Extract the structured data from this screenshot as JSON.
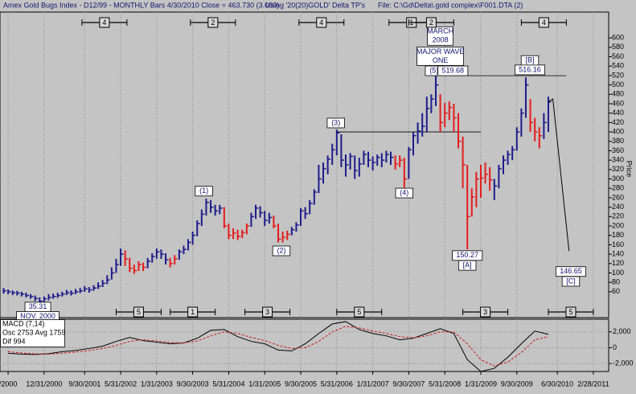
{
  "header": {
    "title": "Amex Gold Bugs Index - D12/99 - MONTHLY Bars 4/30/2010 Close = 463.730 (3.080)",
    "using": "Using '20(20)GOLD' Delta TP's",
    "file": "File: C:\\Gd\\Delta\\.gold complex\\F001.DTA (2)"
  },
  "chart_data": [
    {
      "type": "ohlc",
      "y_axis_label": "Price",
      "xlim": [
        1.2,
        136.4
      ],
      "ylim": [
        5,
        655
      ],
      "xticks": [
        {
          "value": 3,
          "label": "/2000"
        },
        {
          "value": 11,
          "label": "12/31/2000"
        },
        {
          "value": 20,
          "label": "9/30/2001"
        },
        {
          "value": 28,
          "label": "5/31/2002"
        },
        {
          "value": 36,
          "label": "1/31/2003"
        },
        {
          "value": 44,
          "label": "9/30/2003"
        },
        {
          "value": 52,
          "label": "5/31/2004"
        },
        {
          "value": 60,
          "label": "1/31/2005"
        },
        {
          "value": 68,
          "label": "9/30/2005"
        },
        {
          "value": 76,
          "label": "5/31/2006"
        },
        {
          "value": 84,
          "label": "1/31/2007"
        },
        {
          "value": 92,
          "label": "9/30/2007"
        },
        {
          "value": 100,
          "label": "5/31/2008"
        },
        {
          "value": 108,
          "label": "1/31/2009"
        },
        {
          "value": 116,
          "label": "9/30/2009"
        },
        {
          "value": 125,
          "label": "6/30/2010"
        },
        {
          "value": 133,
          "label": "2/28/2011"
        }
      ],
      "yticks": [
        60,
        80,
        100,
        120,
        140,
        160,
        180,
        200,
        220,
        240,
        260,
        280,
        300,
        320,
        340,
        360,
        380,
        400,
        420,
        440,
        460,
        480,
        500,
        520,
        540,
        560,
        580,
        600
      ],
      "grid": true,
      "x": [
        2,
        3,
        4,
        5,
        6,
        7,
        8,
        9,
        10,
        11,
        12,
        13,
        14,
        15,
        16,
        17,
        18,
        19,
        20,
        21,
        22,
        23,
        24,
        25,
        26,
        27,
        28,
        29,
        30,
        31,
        32,
        33,
        34,
        35,
        36,
        37,
        38,
        39,
        40,
        41,
        42,
        43,
        44,
        45,
        46,
        47,
        48,
        49,
        50,
        51,
        52,
        53,
        54,
        55,
        56,
        57,
        58,
        59,
        60,
        61,
        62,
        63,
        64,
        65,
        66,
        67,
        68,
        69,
        70,
        71,
        72,
        73,
        74,
        75,
        76,
        77,
        78,
        79,
        80,
        81,
        82,
        83,
        84,
        85,
        86,
        87,
        88,
        89,
        90,
        91,
        92,
        93,
        94,
        95,
        96,
        97,
        98,
        99,
        100,
        101,
        102,
        103,
        104,
        105,
        106,
        107,
        108,
        109,
        110,
        111,
        112,
        113,
        114,
        115,
        116,
        117,
        118,
        119,
        120,
        121,
        122,
        123
      ],
      "high": [
        68,
        65,
        63,
        62,
        60,
        58,
        55,
        52,
        48,
        50,
        55,
        56,
        58,
        60,
        64,
        63,
        66,
        68,
        72,
        70,
        74,
        80,
        85,
        95,
        112,
        130,
        152,
        148,
        132,
        118,
        125,
        122,
        132,
        142,
        152,
        150,
        142,
        132,
        138,
        150,
        158,
        172,
        188,
        212,
        235,
        258,
        255,
        245,
        245,
        240,
        205,
        195,
        192,
        192,
        205,
        228,
        245,
        242,
        232,
        228,
        222,
        205,
        188,
        190,
        198,
        208,
        238,
        240,
        255,
        278,
        330,
        335,
        350,
        375,
        405,
        395,
        352,
        355,
        350,
        345,
        360,
        358,
        348,
        352,
        355,
        360,
        358,
        350,
        350,
        345,
        368,
        400,
        420,
        440,
        475,
        480,
        519.68,
        480,
        462,
        465,
        460,
        440,
        390,
        330,
        280,
        315,
        330,
        335,
        325,
        300,
        330,
        350,
        360,
        370,
        410,
        450,
        516.16,
        470,
        430,
        410,
        440,
        475
      ],
      "low": [
        56,
        55,
        53,
        52,
        50,
        48,
        45,
        40,
        35.31,
        38,
        42,
        45,
        47,
        50,
        53,
        52,
        55,
        57,
        60,
        58,
        62,
        66,
        70,
        76,
        86,
        100,
        115,
        115,
        102,
        98,
        104,
        104,
        110,
        122,
        130,
        130,
        118,
        112,
        118,
        128,
        140,
        148,
        160,
        178,
        200,
        222,
        228,
        222,
        225,
        195,
        172,
        172,
        170,
        174,
        182,
        198,
        215,
        218,
        200,
        205,
        195,
        165,
        165,
        170,
        180,
        188,
        200,
        215,
        225,
        245,
        270,
        290,
        310,
        330,
        350,
        325,
        305,
        320,
        300,
        305,
        330,
        325,
        318,
        328,
        325,
        335,
        330,
        320,
        325,
        280,
        300,
        350,
        375,
        390,
        400,
        440,
        455,
        400,
        410,
        425,
        400,
        365,
        280,
        150.27,
        220,
        240,
        260,
        290,
        275,
        255,
        280,
        310,
        330,
        340,
        360,
        390,
        430,
        400,
        380,
        365,
        385,
        400
      ],
      "close": [
        62,
        60,
        58,
        57,
        55,
        52,
        50,
        46,
        40,
        45,
        48,
        50,
        52,
        55,
        58,
        57,
        60,
        62,
        66,
        64,
        68,
        72,
        78,
        85,
        100,
        118,
        140,
        130,
        110,
        105,
        118,
        112,
        125,
        135,
        145,
        140,
        128,
        120,
        130,
        145,
        150,
        165,
        180,
        205,
        225,
        250,
        240,
        232,
        238,
        200,
        180,
        185,
        178,
        186,
        200,
        220,
        238,
        228,
        212,
        218,
        200,
        172,
        176,
        182,
        192,
        202,
        232,
        226,
        248,
        272,
        300,
        322,
        342,
        362,
        398,
        340,
        330,
        348,
        318,
        332,
        352,
        340,
        335,
        346,
        340,
        352,
        346,
        332,
        340,
        300,
        362,
        392,
        402,
        412,
        450,
        470,
        500,
        420,
        440,
        452,
        430,
        380,
        330,
        220,
        262,
        300,
        302,
        310,
        298,
        285,
        322,
        340,
        352,
        362,
        400,
        440,
        500,
        420,
        400,
        392,
        420,
        463.73
      ],
      "bar_colors": [
        "#1c1c8c",
        "#1c1c8c",
        "#1c1c8c",
        "#1c1c8c",
        "#1c1c8c",
        "#1c1c8c",
        "#1c1c8c",
        "#1c1c8c",
        "#1c1c8c",
        "#1c1c8c",
        "#1c1c8c",
        "#1c1c8c",
        "#1c1c8c",
        "#1c1c8c",
        "#1c1c8c",
        "#1c1c8c",
        "#1c1c8c",
        "#1c1c8c",
        "#1c1c8c",
        "#1c1c8c",
        "#1c1c8c",
        "#1c1c8c",
        "#1c1c8c",
        "#1c1c8c",
        "#1c1c8c",
        "#1c1c8c",
        "#1c1c8c",
        "#e41c1c",
        "#e41c1c",
        "#e41c1c",
        "#e41c1c",
        "#e41c1c",
        "#1c1c8c",
        "#1c1c8c",
        "#1c1c8c",
        "#1c1c8c",
        "#1c1c8c",
        "#e41c1c",
        "#e41c1c",
        "#1c1c8c",
        "#1c1c8c",
        "#1c1c8c",
        "#1c1c8c",
        "#1c1c8c",
        "#1c1c8c",
        "#1c1c8c",
        "#1c1c8c",
        "#1c1c8c",
        "#1c1c8c",
        "#e41c1c",
        "#e41c1c",
        "#e41c1c",
        "#e41c1c",
        "#e41c1c",
        "#e41c1c",
        "#1c1c8c",
        "#1c1c8c",
        "#1c1c8c",
        "#1c1c8c",
        "#1c1c8c",
        "#e41c1c",
        "#e41c1c",
        "#e41c1c",
        "#e41c1c",
        "#1c1c8c",
        "#1c1c8c",
        "#1c1c8c",
        "#1c1c8c",
        "#1c1c8c",
        "#1c1c8c",
        "#1c1c8c",
        "#1c1c8c",
        "#1c1c8c",
        "#1c1c8c",
        "#1c1c8c",
        "#1c1c8c",
        "#1c1c8c",
        "#1c1c8c",
        "#1c1c8c",
        "#1c1c8c",
        "#1c1c8c",
        "#1c1c8c",
        "#1c1c8c",
        "#1c1c8c",
        "#1c1c8c",
        "#1c1c8c",
        "#1c1c8c",
        "#e41c1c",
        "#e41c1c",
        "#e41c1c",
        "#1c1c8c",
        "#1c1c8c",
        "#1c1c8c",
        "#1c1c8c",
        "#1c1c8c",
        "#1c1c8c",
        "#1c1c8c",
        "#e41c1c",
        "#e41c1c",
        "#e41c1c",
        "#e41c1c",
        "#e41c1c",
        "#e41c1c",
        "#e41c1c",
        "#e41c1c",
        "#e41c1c",
        "#e41c1c",
        "#e41c1c",
        "#e41c1c",
        "#1c1c8c",
        "#1c1c8c",
        "#1c1c8c",
        "#1c1c8c",
        "#1c1c8c",
        "#1c1c8c",
        "#1c1c8c",
        "#1c1c8c",
        "#e41c1c",
        "#e41c1c",
        "#e41c1c",
        "#1c1c8c",
        "#1c1c8c"
      ],
      "hlines": [
        {
          "value": 400,
          "x": [
            76,
            108
          ]
        },
        {
          "value": 519.68,
          "x": [
            97.6,
            127
          ]
        }
      ],
      "projection": {
        "x": [
          123,
          124,
          127.6
        ],
        "values": [
          463.73,
          470,
          146.65
        ]
      },
      "annotations": [
        {
          "lines": [
            "35.31"
          ],
          "x": 9.6,
          "y": 27.5
        },
        {
          "lines": [
            "NOV. 2000"
          ],
          "x": 9.6,
          "y": 7.5
        },
        {
          "lines": [
            "(1)"
          ],
          "x": 46.5,
          "y": 274
        },
        {
          "lines": [
            "(2)"
          ],
          "x": 63.7,
          "y": 147
        },
        {
          "lines": [
            "(3)"
          ],
          "x": 75.8,
          "y": 419
        },
        {
          "lines": [
            "(4)"
          ],
          "x": 91,
          "y": 270
        },
        {
          "lines": [
            "(5)"
          ],
          "x": 97.6,
          "y": 530
        },
        {
          "lines": [
            "519.68"
          ],
          "x": 101.8,
          "y": 530
        },
        {
          "lines": [
            "MAJOR WAVE",
            "ONE"
          ],
          "x": 99,
          "y": 561
        },
        {
          "lines": [
            "MARCH",
            "2008"
          ],
          "x": 99,
          "y": 604
        },
        {
          "lines": [
            "[B]"
          ],
          "x": 118.9,
          "y": 552
        },
        {
          "lines": [
            "516.16"
          ],
          "x": 118.9,
          "y": 532
        },
        {
          "lines": [
            "150.27"
          ],
          "x": 105,
          "y": 137
        },
        {
          "lines": [
            "[A]"
          ],
          "x": 105,
          "y": 116
        },
        {
          "lines": [
            "146.65"
          ],
          "x": 128,
          "y": 103
        },
        {
          "lines": [
            "[C]"
          ],
          "x": 128,
          "y": 82
        }
      ],
      "top_markers": [
        {
          "label": "4",
          "x": 24.4
        },
        {
          "label": "2",
          "x": 48.5
        },
        {
          "label": "4",
          "x": 72.6
        },
        {
          "label": "1",
          "x": 92.6
        },
        {
          "label": "2",
          "x": 97
        },
        {
          "label": "4",
          "x": 122
        }
      ],
      "bottom_markers": [
        {
          "label": "5",
          "x": 32
        },
        {
          "label": "1",
          "x": 44
        },
        {
          "label": "3",
          "x": 60.6
        },
        {
          "label": "5",
          "x": 81
        },
        {
          "label": "3",
          "x": 109
        },
        {
          "label": "5",
          "x": 128
        }
      ]
    },
    {
      "type": "line",
      "legend": [
        "MACD (7,14)",
        "Osc 2753 Avg 1759",
        "Dif 994"
      ],
      "ylim": [
        -3000,
        3600
      ],
      "yticks": [
        {
          "value": 2000,
          "label": "2,000"
        },
        0,
        {
          "value": -2000,
          "label": "-2,000"
        }
      ],
      "x": [
        3,
        6,
        9,
        12,
        15,
        18,
        21,
        24,
        27,
        30,
        33,
        36,
        39,
        42,
        45,
        48,
        51,
        54,
        57,
        60,
        63,
        66,
        69,
        72,
        75,
        78,
        81,
        84,
        87,
        90,
        93,
        96,
        99,
        102,
        105,
        108,
        111,
        114,
        117,
        120,
        123
      ],
      "series": [
        {
          "color": "#000000",
          "values": [
            -700,
            -800,
            -850,
            -750,
            -500,
            -350,
            -100,
            200,
            800,
            1300,
            900,
            700,
            500,
            600,
            1200,
            2200,
            2300,
            1400,
            800,
            500,
            -300,
            -400,
            500,
            1800,
            3000,
            3300,
            2300,
            1800,
            1500,
            1000,
            1200,
            1800,
            2400,
            1800,
            -1500,
            -3000,
            -2600,
            -1200,
            500,
            2100,
            1700
          ]
        },
        {
          "color": "#d01818",
          "dashed": true,
          "values": [
            -500,
            -650,
            -780,
            -800,
            -700,
            -550,
            -350,
            -100,
            300,
            800,
            1000,
            850,
            650,
            600,
            850,
            1500,
            2000,
            1800,
            1300,
            900,
            300,
            -100,
            0,
            800,
            2000,
            2700,
            2500,
            2100,
            1800,
            1400,
            1250,
            1500,
            2000,
            2000,
            500,
            -1500,
            -2300,
            -1800,
            -600,
            1000,
            1400
          ]
        }
      ]
    }
  ]
}
